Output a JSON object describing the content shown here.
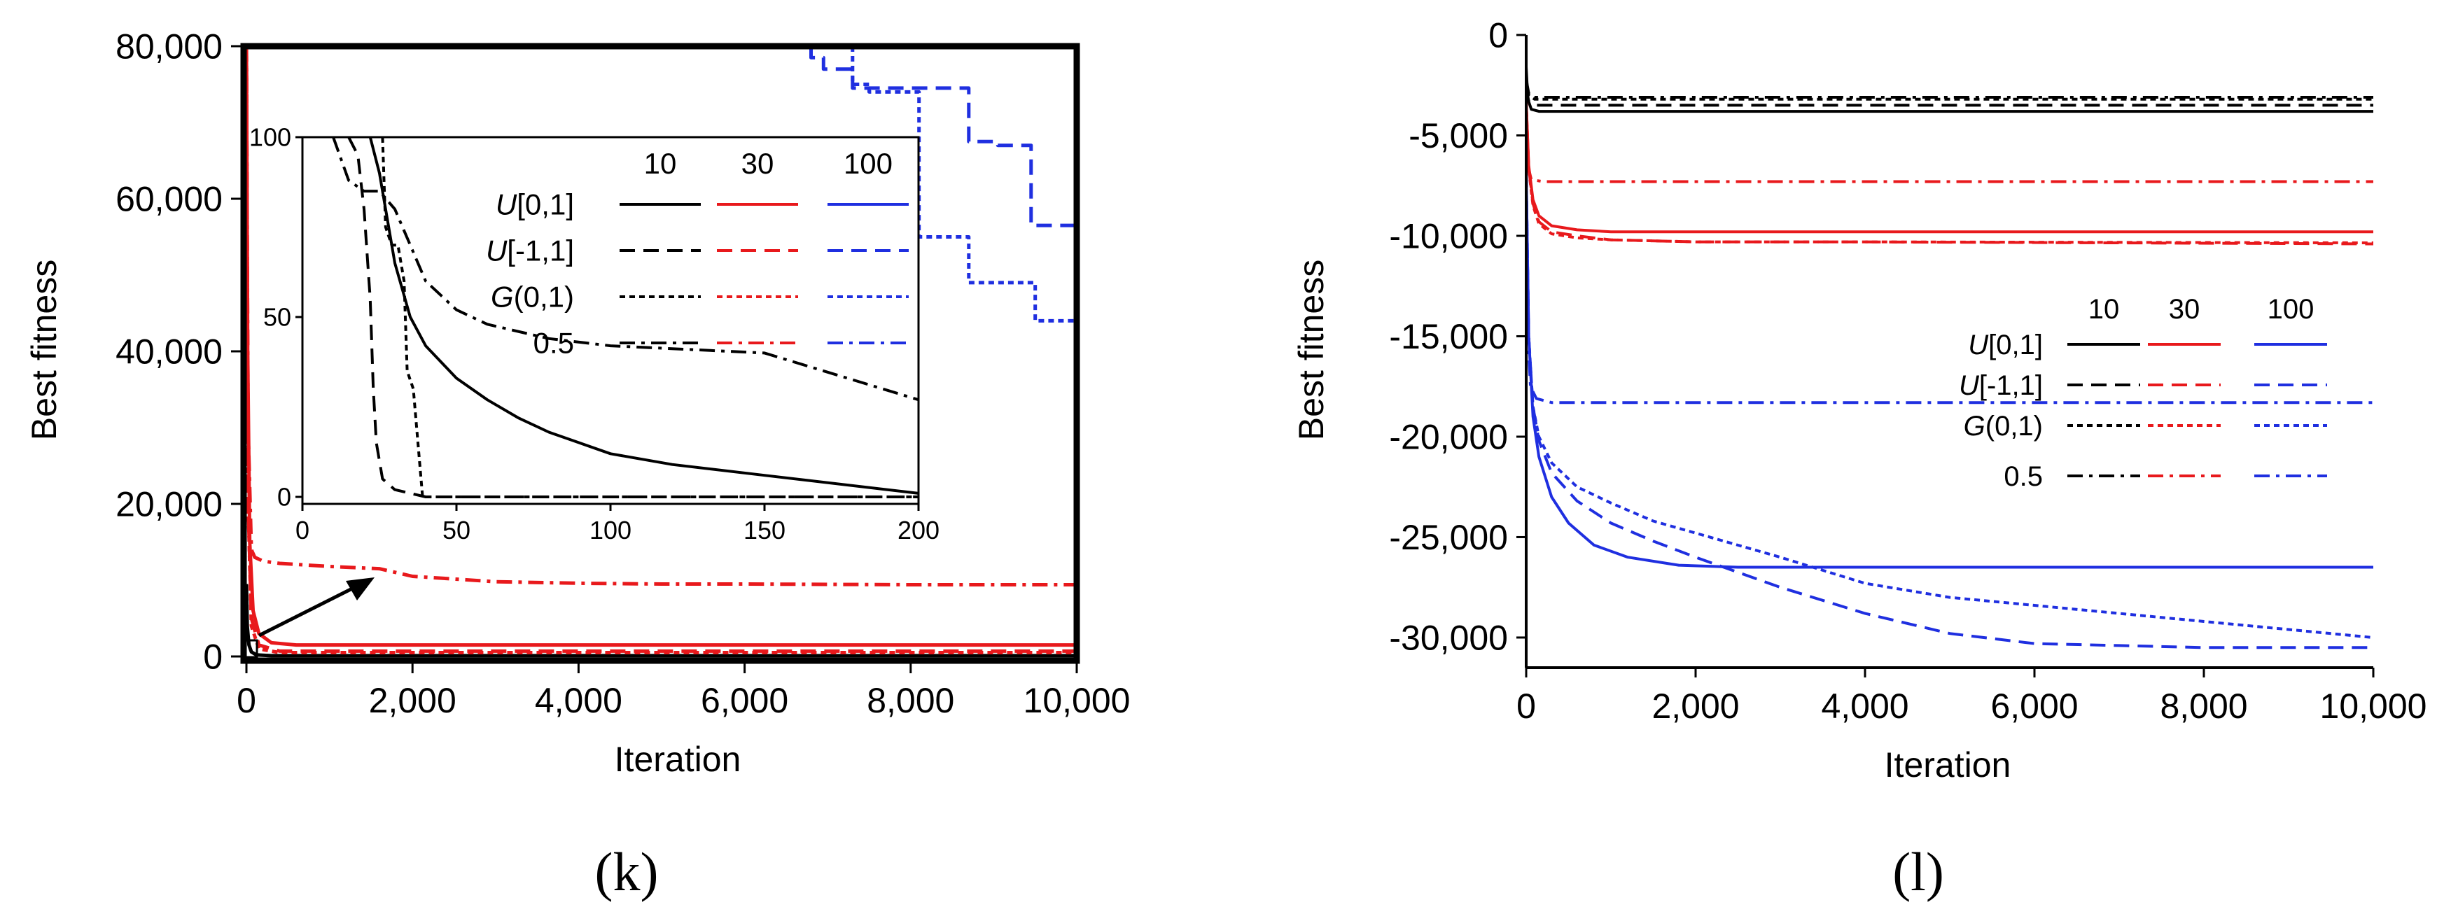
{
  "charts": [
    {
      "id": "k",
      "panel_label": "(k)",
      "xlabel": "Iteration",
      "ylabel": "Best fitness",
      "x_ticks": [
        "0",
        "2,000",
        "4,000",
        "6,000",
        "8,000",
        "10,000"
      ],
      "y_ticks": [
        "0",
        "20,000",
        "40,000",
        "60,000",
        "80,000"
      ],
      "inset": {
        "x_ticks": [
          "0",
          "50",
          "100",
          "150",
          "200"
        ],
        "y_ticks": [
          "0",
          "50",
          "100"
        ]
      },
      "legend": {
        "headers": [
          "10",
          "30",
          "100"
        ],
        "rows": [
          {
            "pre": "U",
            "post": "[0,1]"
          },
          {
            "pre": "U",
            "post": "[-1,1]"
          },
          {
            "pre": "G",
            "post": "(0,1)"
          },
          {
            "pre": "",
            "post": "0.5"
          }
        ]
      }
    },
    {
      "id": "l",
      "panel_label": "(l)",
      "xlabel": "Iteration",
      "ylabel": "Best fitness",
      "x_ticks": [
        "0",
        "2,000",
        "4,000",
        "6,000",
        "8,000",
        "10,000"
      ],
      "y_ticks": [
        "0",
        "-5,000",
        "-10,000",
        "-15,000",
        "-20,000",
        "-25,000",
        "-30,000"
      ],
      "legend": {
        "headers": [
          "10",
          "30",
          "100"
        ],
        "rows": [
          {
            "pre": "U",
            "post": "[0,1]"
          },
          {
            "pre": "U",
            "post": "[-1,1]"
          },
          {
            "pre": "G",
            "post": "(0,1)"
          },
          {
            "pre": "",
            "post": "0.5"
          }
        ]
      }
    }
  ],
  "chart_data": [
    {
      "type": "line",
      "panel": "k",
      "xlabel": "Iteration",
      "ylabel": "Best fitness",
      "xlim": [
        0,
        10000
      ],
      "ylim": [
        0,
        80000
      ],
      "series": [
        {
          "name": "U[0,1] 10",
          "color": "#000000",
          "dash": "solid",
          "x": [
            0,
            10,
            30,
            60,
            120,
            300,
            1000,
            10000
          ],
          "y": [
            9500,
            4000,
            1500,
            600,
            200,
            100,
            100,
            100
          ]
        },
        {
          "name": "U[0,1] 30",
          "color": "#e8191c",
          "dash": "solid",
          "x": [
            0,
            15,
            40,
            80,
            150,
            300,
            600,
            10000
          ],
          "y": [
            80000,
            40000,
            15000,
            6000,
            3000,
            1800,
            1500,
            1500
          ]
        },
        {
          "name": "U[-1,1] 30",
          "color": "#e8191c",
          "dash": "dashed",
          "x": [
            0,
            20,
            60,
            150,
            400,
            10000
          ],
          "y": [
            80000,
            20000,
            5000,
            1500,
            700,
            700
          ]
        },
        {
          "name": "G(0,1) 30",
          "color": "#e8191c",
          "dash": "dotted",
          "x": [
            0,
            20,
            60,
            150,
            400,
            10000
          ],
          "y": [
            80000,
            20000,
            4000,
            1000,
            500,
            500
          ]
        },
        {
          "name": "0.5 30",
          "color": "#e8191c",
          "dash": "dashdot",
          "x": [
            0,
            20,
            60,
            100,
            200,
            400,
            1000,
            1600,
            2000,
            3000,
            4000,
            5000,
            6000,
            8000,
            10000
          ],
          "y": [
            80000,
            30000,
            14000,
            13000,
            12500,
            12200,
            11800,
            11500,
            10500,
            9800,
            9600,
            9500,
            9500,
            9400,
            9400
          ]
        },
        {
          "name": "U[-1,1] 100",
          "color": "#1f2fe0",
          "dash": "dashed",
          "x": [
            6800,
            6800,
            6950,
            6950,
            7300,
            7300,
            8700,
            8700,
            9050,
            9050,
            9450,
            9450,
            10000
          ],
          "y": [
            80000,
            78500,
            78500,
            77000,
            77000,
            74500,
            74500,
            67500,
            67500,
            67000,
            67000,
            56500,
            56500
          ]
        },
        {
          "name": "G(0,1) 100",
          "color": "#1f2fe0",
          "dash": "dotted",
          "x": [
            7300,
            7300,
            7500,
            7500,
            8100,
            8100,
            8700,
            8700,
            9500,
            9500,
            10000
          ],
          "y": [
            80000,
            75000,
            75000,
            74000,
            74000,
            55000,
            55000,
            49000,
            49000,
            44000,
            44000
          ]
        }
      ],
      "inset": {
        "xlim": [
          0,
          200
        ],
        "ylim": [
          0,
          100
        ],
        "series": [
          {
            "name": "U[0,1] 10",
            "color": "#000000",
            "dash": "solid",
            "x": [
              22,
              25,
              28,
              30,
              35,
              40,
              50,
              60,
              70,
              80,
              90,
              100,
              120,
              150,
              200
            ],
            "y": [
              100,
              90,
              75,
              65,
              50,
              42,
              33,
              27,
              22,
              18,
              15,
              12,
              9,
              6,
              1
            ]
          },
          {
            "name": "U[-1,1] 10",
            "color": "#000000",
            "dash": "dashed",
            "x": [
              15,
              18,
              20,
              22,
              23,
              24,
              26,
              30,
              35,
              40,
              200
            ],
            "y": [
              100,
              95,
              80,
              55,
              30,
              15,
              5,
              2,
              1,
              0,
              0
            ]
          },
          {
            "name": "G(0,1) 10",
            "color": "#000000",
            "dash": "dotted",
            "x": [
              26,
              27,
              29,
              31,
              33,
              34,
              36,
              37,
              38,
              39,
              200
            ],
            "y": [
              100,
              75,
              70,
              70,
              60,
              35,
              30,
              20,
              10,
              0,
              0
            ]
          },
          {
            "name": "0.5 10",
            "color": "#000000",
            "dash": "dashdot",
            "x": [
              10,
              15,
              20,
              25,
              30,
              35,
              40,
              50,
              60,
              80,
              100,
              150,
              200
            ],
            "y": [
              100,
              88,
              85,
              85,
              80,
              70,
              60,
              52,
              48,
              44,
              42,
              40,
              27
            ]
          }
        ]
      },
      "legend_entries": [
        "U[0,1]",
        "U[-1,1]",
        "G(0,1)",
        "0.5"
      ],
      "legend_columns": [
        "10",
        "30",
        "100"
      ]
    },
    {
      "type": "line",
      "panel": "l",
      "xlabel": "Iteration",
      "ylabel": "Best fitness",
      "xlim": [
        0,
        10000
      ],
      "ylim": [
        -31500,
        0
      ],
      "series": [
        {
          "name": "U[0,1] 10",
          "color": "#000000",
          "dash": "solid",
          "x": [
            0,
            20,
            60,
            150,
            10000
          ],
          "y": [
            -1600,
            -3200,
            -3700,
            -3800,
            -3800
          ]
        },
        {
          "name": "U[-1,1] 10",
          "color": "#000000",
          "dash": "dashed",
          "x": [
            0,
            30,
            100,
            10000
          ],
          "y": [
            -2600,
            -3300,
            -3500,
            -3500
          ]
        },
        {
          "name": "G(0,1) 10",
          "color": "#000000",
          "dash": "dotted",
          "x": [
            0,
            30,
            100,
            10000
          ],
          "y": [
            -2300,
            -3000,
            -3200,
            -3200
          ]
        },
        {
          "name": "0.5 10",
          "color": "#000000",
          "dash": "dashdot",
          "x": [
            0,
            30,
            80,
            10000
          ],
          "y": [
            -2200,
            -2900,
            -3100,
            -3100
          ]
        },
        {
          "name": "U[0,1] 30",
          "color": "#e8191c",
          "dash": "solid",
          "x": [
            0,
            30,
            80,
            150,
            300,
            600,
            1000,
            2000,
            10000
          ],
          "y": [
            -3300,
            -6500,
            -8200,
            -9000,
            -9500,
            -9700,
            -9800,
            -9800,
            -9800
          ]
        },
        {
          "name": "U[-1,1] 30",
          "color": "#e8191c",
          "dash": "dashed",
          "x": [
            0,
            30,
            80,
            150,
            300,
            600,
            1000,
            2000,
            4000,
            10000
          ],
          "y": [
            -3300,
            -6600,
            -8400,
            -9300,
            -9800,
            -10000,
            -10200,
            -10300,
            -10300,
            -10400
          ]
        },
        {
          "name": "G(0,1) 30",
          "color": "#e8191c",
          "dash": "dotted",
          "x": [
            0,
            30,
            80,
            150,
            300,
            600,
            1000,
            2000,
            4000,
            10000
          ],
          "y": [
            -3300,
            -6700,
            -8500,
            -9400,
            -9900,
            -10100,
            -10200,
            -10300,
            -10300,
            -10350
          ]
        },
        {
          "name": "0.5 30",
          "color": "#e8191c",
          "dash": "dashdot",
          "x": [
            0,
            20,
            60,
            200,
            10000
          ],
          "y": [
            -3300,
            -6500,
            -7200,
            -7300,
            -7300
          ]
        },
        {
          "name": "U[0,1] 100",
          "color": "#1f2fe0",
          "dash": "solid",
          "x": [
            0,
            30,
            80,
            150,
            300,
            500,
            800,
            1200,
            1800,
            2500,
            3200,
            10000
          ],
          "y": [
            -6800,
            -15000,
            -19000,
            -21000,
            -23000,
            -24300,
            -25400,
            -26000,
            -26400,
            -26500,
            -26500,
            -26500
          ]
        },
        {
          "name": "U[-1,1] 100",
          "color": "#1f2fe0",
          "dash": "dashed",
          "x": [
            0,
            30,
            80,
            150,
            300,
            600,
            1000,
            1500,
            2000,
            3000,
            4000,
            5000,
            6000,
            7000,
            8000,
            10000
          ],
          "y": [
            -6800,
            -15000,
            -18500,
            -20200,
            -21800,
            -23200,
            -24300,
            -25200,
            -26000,
            -27500,
            -28800,
            -29800,
            -30300,
            -30400,
            -30500,
            -30500
          ]
        },
        {
          "name": "G(0,1) 100",
          "color": "#1f2fe0",
          "dash": "dotted",
          "x": [
            0,
            30,
            80,
            150,
            300,
            600,
            1000,
            1500,
            2000,
            3000,
            4000,
            5000,
            6000,
            7000,
            8000,
            9000,
            10000
          ],
          "y": [
            -6800,
            -15000,
            -18500,
            -20000,
            -21300,
            -22500,
            -23300,
            -24200,
            -24800,
            -26000,
            -27300,
            -28000,
            -28400,
            -28800,
            -29200,
            -29600,
            -30000
          ]
        },
        {
          "name": "0.5 100",
          "color": "#1f2fe0",
          "dash": "dashdot",
          "x": [
            0,
            20,
            50,
            120,
            300,
            10000
          ],
          "y": [
            -6800,
            -15000,
            -17500,
            -18100,
            -18300,
            -18300
          ]
        }
      ],
      "legend_entries": [
        "U[0,1]",
        "U[-1,1]",
        "G(0,1)",
        "0.5"
      ],
      "legend_columns": [
        "10",
        "30",
        "100"
      ]
    }
  ]
}
